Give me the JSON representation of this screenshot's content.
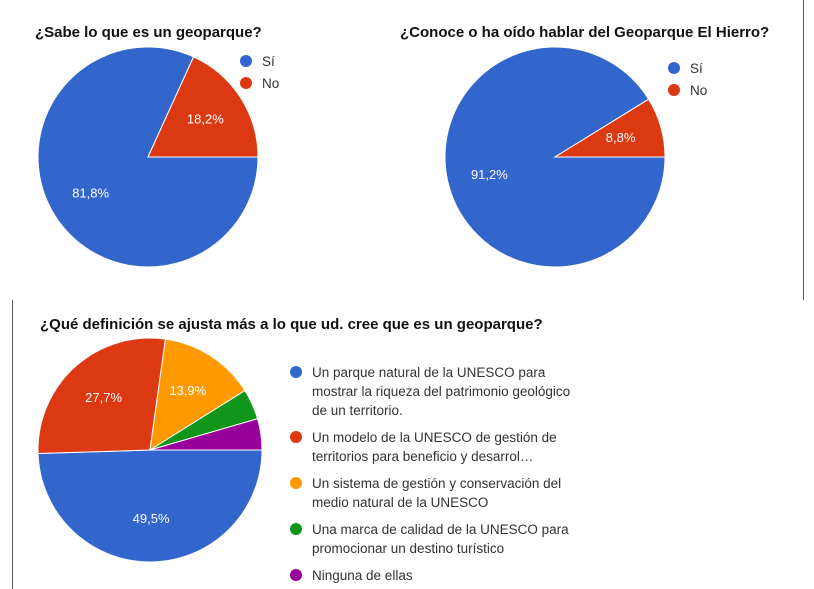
{
  "chart_data": [
    {
      "type": "pie",
      "title": "¿Sabe lo que es un geoparque?",
      "categories": [
        "Sí",
        "No"
      ],
      "values": [
        81.8,
        18.2
      ],
      "value_labels": [
        "81,8%",
        "18,2%"
      ],
      "colors": [
        "#3366cc",
        "#dc3912"
      ]
    },
    {
      "type": "pie",
      "title": "¿Conoce o ha oído hablar del Geoparque El Hierro?",
      "categories": [
        "Sí",
        "No"
      ],
      "values": [
        91.2,
        8.8
      ],
      "value_labels": [
        "91,2%",
        "8,8%"
      ],
      "colors": [
        "#3366cc",
        "#dc3912"
      ]
    },
    {
      "type": "pie",
      "title": "¿Qué definición se ajusta más a lo que ud. cree que es un geoparque?",
      "categories": [
        "Un parque natural de la UNESCO para mostrar la riqueza del patrimonio geológico de un territorio.",
        "Un modelo de la UNESCO de gestión de territorios para beneficio y desarrol…",
        "Un sistema de gestión y conservación del medio natural de la UNESCO",
        "Una marca de calidad de la UNESCO para promocionar un destino turístico",
        "Ninguna de ellas"
      ],
      "values": [
        49.5,
        27.7,
        13.9,
        4.4,
        4.5
      ],
      "value_labels": [
        "49,5%",
        "27,7%",
        "13,9%",
        null,
        null
      ],
      "colors": [
        "#3366cc",
        "#dc3912",
        "#ff9900",
        "#109618",
        "#990099"
      ]
    }
  ]
}
